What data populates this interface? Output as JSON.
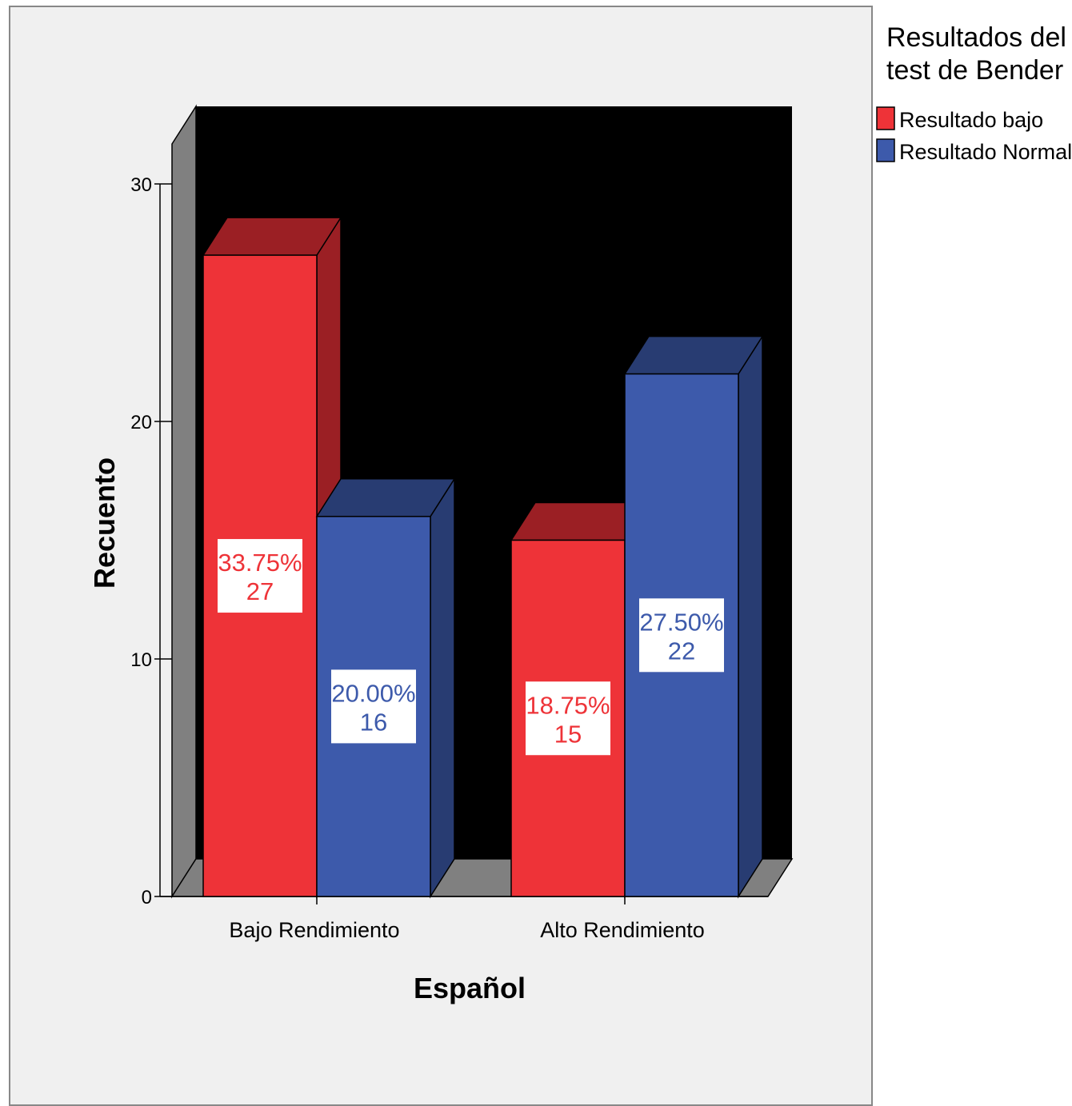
{
  "chart_data": {
    "type": "bar",
    "style": "3d-clustered",
    "categories": [
      "Bajo Rendimiento",
      "Alto Rendimiento"
    ],
    "series": [
      {
        "name": "Resultado bajo",
        "values": [
          27,
          15
        ],
        "labels": [
          "33.75%",
          "18.75%"
        ]
      },
      {
        "name": "Resultado Normal",
        "values": [
          16,
          22
        ],
        "labels": [
          "20.00%",
          "27.50%"
        ]
      }
    ],
    "xlabel": "Español",
    "ylabel": "Recuento",
    "ylim": [
      0,
      30
    ],
    "yticks": [
      "0",
      "10",
      "20",
      "30"
    ],
    "legend": {
      "title": "Resultados del test de Bender",
      "title_lines": [
        "Resultados del",
        "test de Bender"
      ],
      "position": "right"
    },
    "colors": {
      "series_front": [
        "#ee3338",
        "#3d5aab"
      ],
      "series_top": [
        "#9b1f24",
        "#283c72"
      ],
      "series_side": [
        "#9b1f24",
        "#283c72"
      ],
      "series_label": [
        "#ee3338",
        "#3d5aab"
      ],
      "plot_background": "#000000",
      "wall": "#808080",
      "frame_background": "#f0f0f0"
    }
  }
}
